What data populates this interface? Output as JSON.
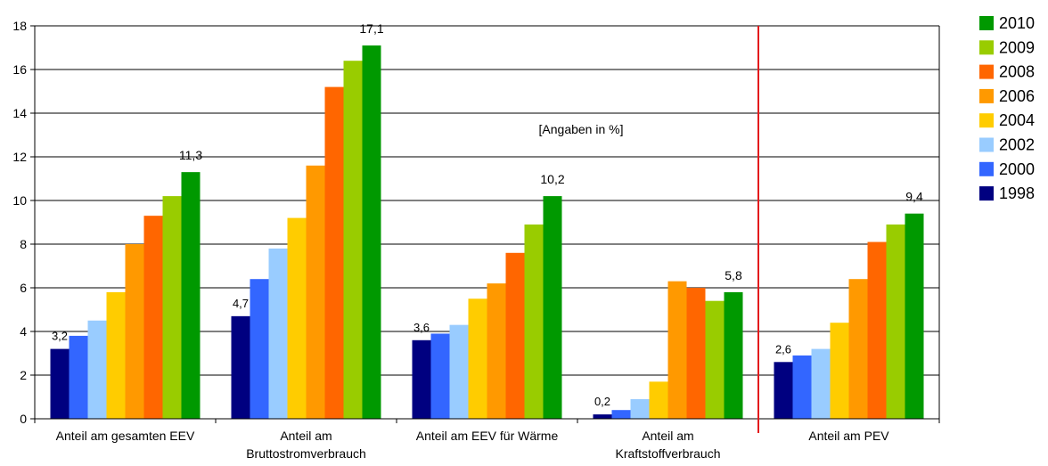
{
  "chart_data": {
    "type": "bar",
    "categories": [
      [
        "Anteil am gesamten EEV"
      ],
      [
        "Anteil am",
        "Bruttostromverbrauch"
      ],
      [
        "Anteil am EEV für Wärme"
      ],
      [
        "Anteil am",
        "Kraftstoffverbrauch"
      ],
      [
        "Anteil am PEV"
      ]
    ],
    "series": [
      {
        "name": "1998",
        "color": "#000080",
        "values": [
          3.2,
          4.7,
          3.6,
          0.2,
          2.6
        ]
      },
      {
        "name": "2000",
        "color": "#3366ff",
        "values": [
          3.8,
          6.4,
          3.9,
          0.4,
          2.9
        ]
      },
      {
        "name": "2002",
        "color": "#99ccff",
        "values": [
          4.5,
          7.8,
          4.3,
          0.9,
          3.2
        ]
      },
      {
        "name": "2004",
        "color": "#ffcc00",
        "values": [
          5.8,
          9.2,
          5.5,
          1.7,
          4.4
        ]
      },
      {
        "name": "2006",
        "color": "#ff9900",
        "values": [
          8.0,
          11.6,
          6.2,
          6.3,
          6.4
        ]
      },
      {
        "name": "2008",
        "color": "#ff6600",
        "values": [
          9.3,
          15.2,
          7.6,
          6.0,
          8.1
        ]
      },
      {
        "name": "2009",
        "color": "#99cc00",
        "values": [
          10.2,
          16.4,
          8.9,
          5.4,
          8.9
        ]
      },
      {
        "name": "2010",
        "color": "#009900",
        "values": [
          11.3,
          17.1,
          10.2,
          5.8,
          9.4
        ]
      }
    ],
    "data_labels": [
      {
        "category": 0,
        "series": "1998",
        "text": "3,2"
      },
      {
        "category": 0,
        "series": "2010",
        "text": "11,3"
      },
      {
        "category": 1,
        "series": "1998",
        "text": "4,7"
      },
      {
        "category": 1,
        "series": "2010",
        "text": "17,1"
      },
      {
        "category": 2,
        "series": "1998",
        "text": "3,6"
      },
      {
        "category": 2,
        "series": "2010",
        "text": "10,2"
      },
      {
        "category": 3,
        "series": "1998",
        "text": "0,2"
      },
      {
        "category": 3,
        "series": "2010",
        "text": "5,8"
      },
      {
        "category": 4,
        "series": "1998",
        "text": "2,6"
      },
      {
        "category": 4,
        "series": "2010",
        "text": "9,4"
      }
    ],
    "yticks": [
      0,
      2,
      4,
      6,
      8,
      10,
      12,
      14,
      16,
      18
    ],
    "ylim": [
      0,
      18
    ],
    "grid": true,
    "legend_order": [
      "2010",
      "2009",
      "2008",
      "2006",
      "2004",
      "2002",
      "2000",
      "1998"
    ],
    "legend_position": "right",
    "annotation": "[Angaben in %]",
    "separator_color": "#e31a1c",
    "separator_after_category": 3
  }
}
